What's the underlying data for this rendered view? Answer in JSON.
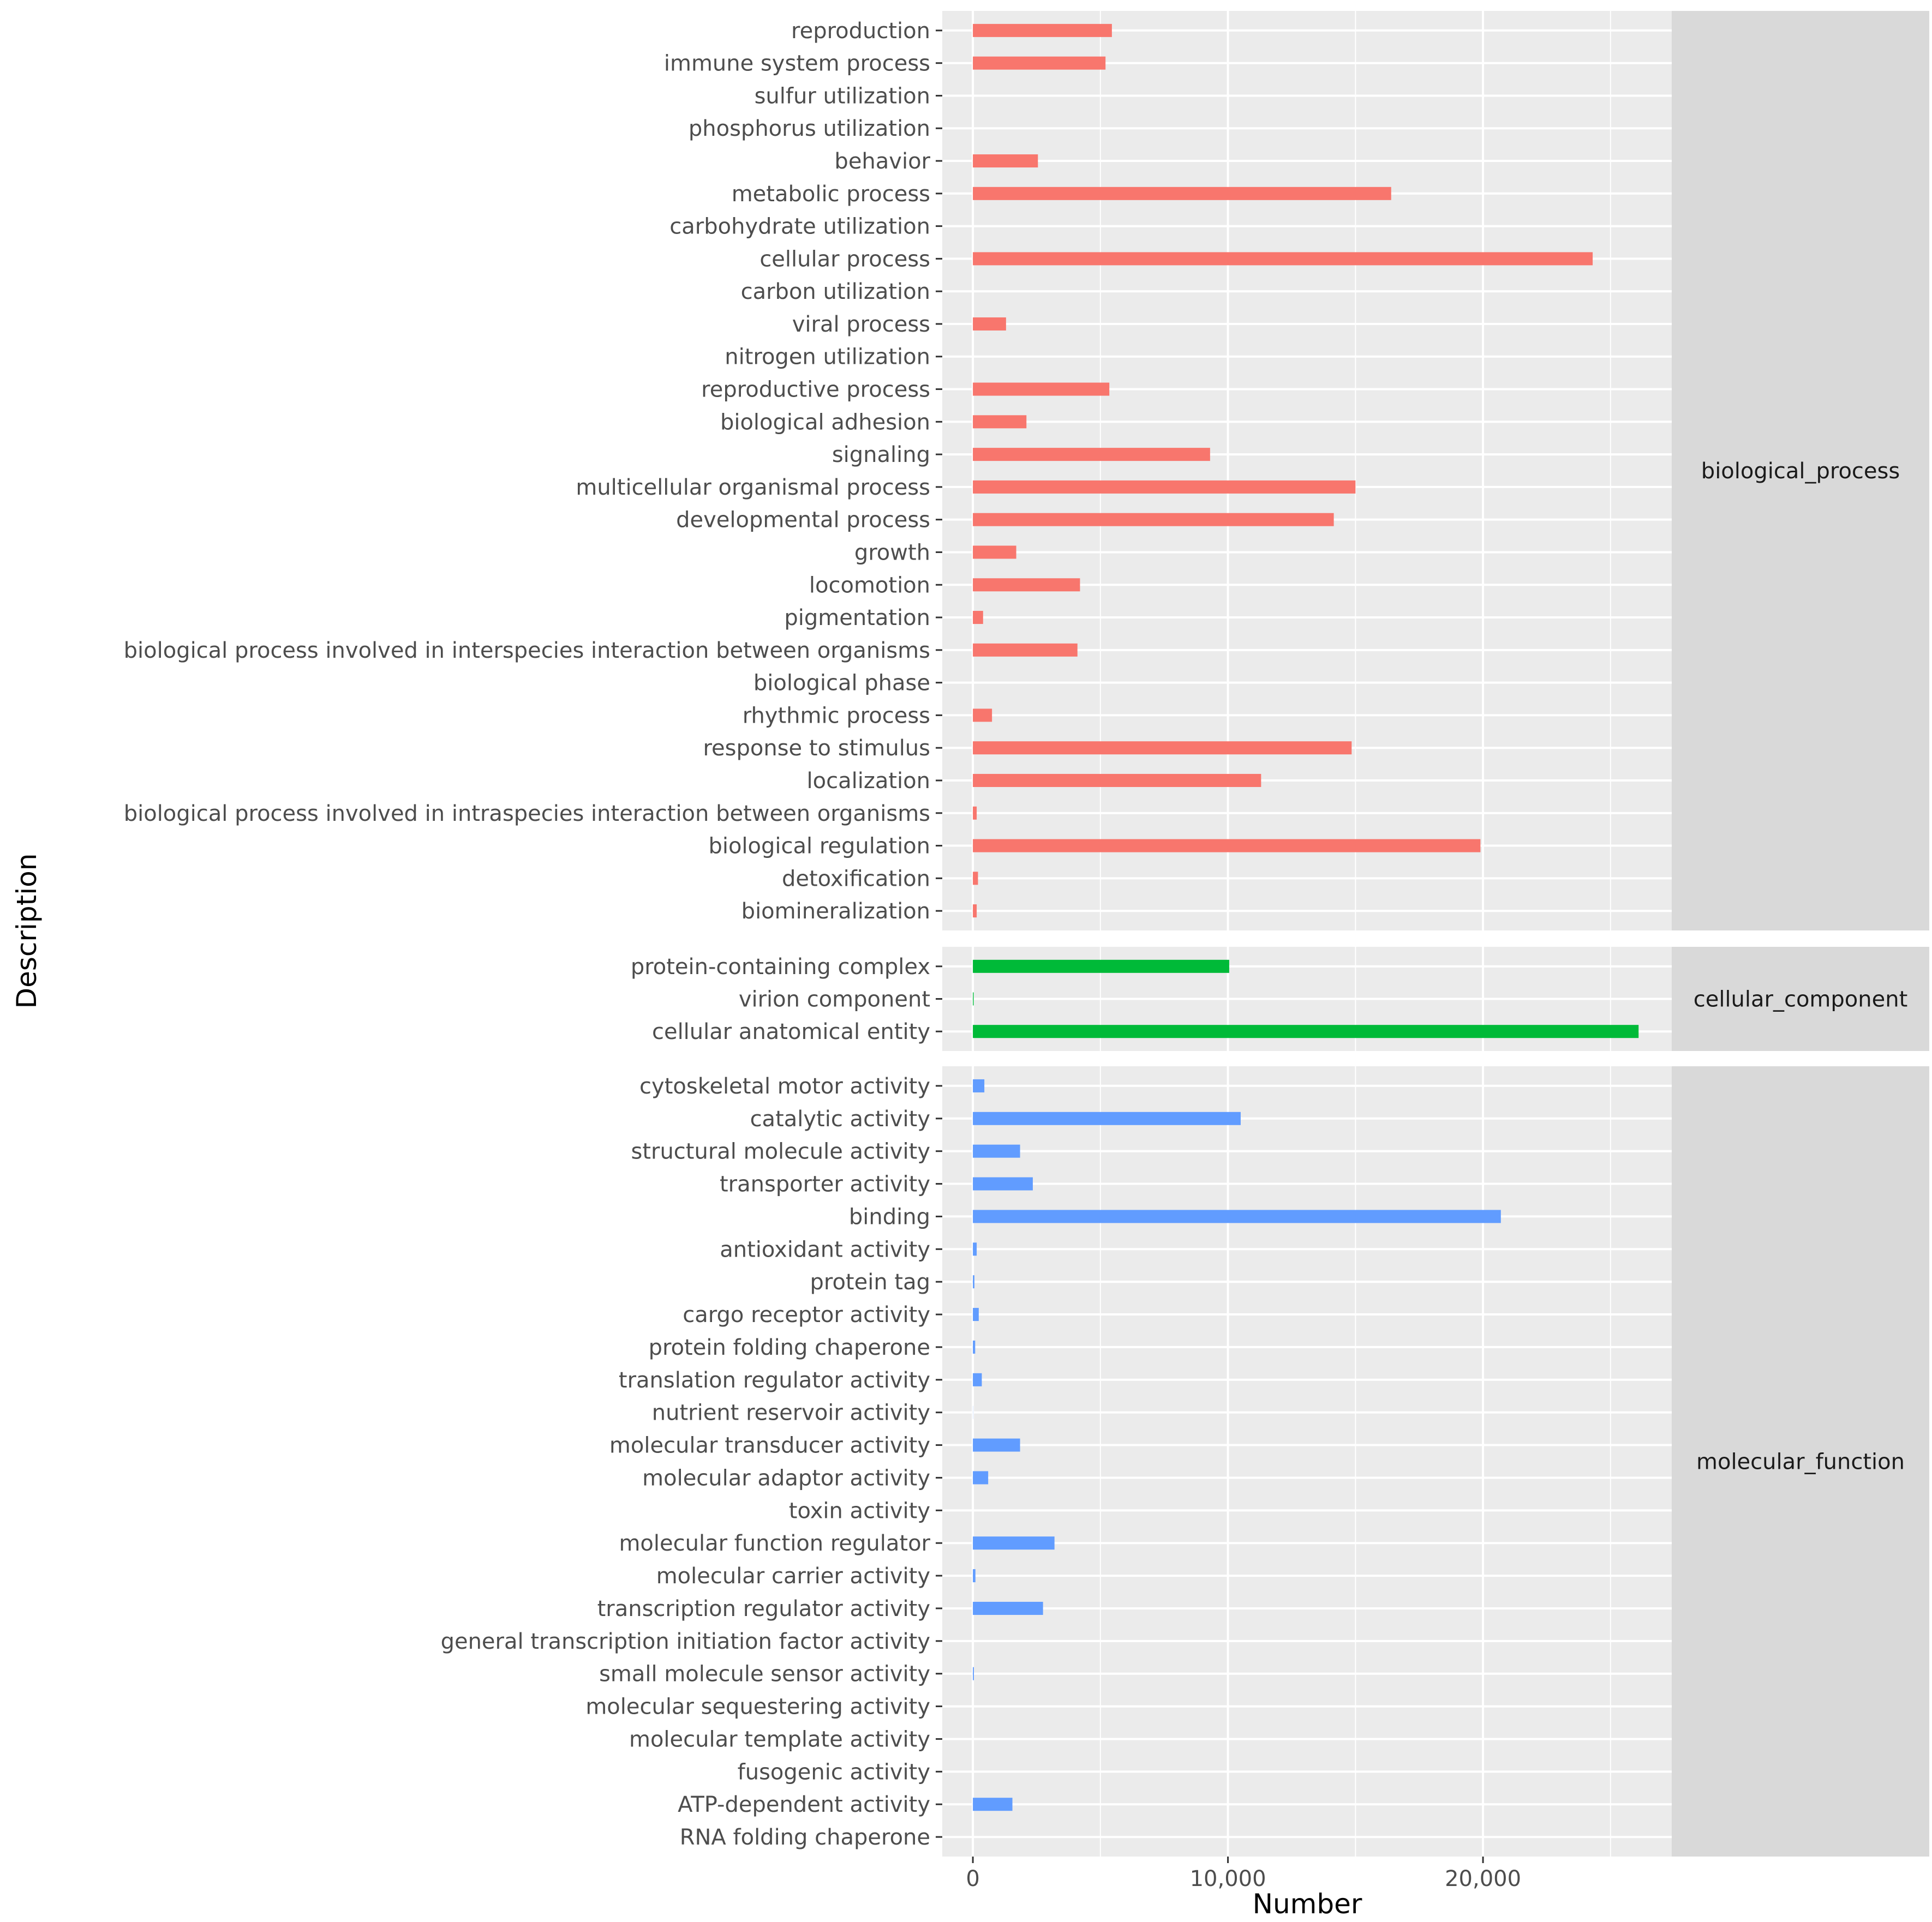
{
  "chart_data": {
    "type": "bar",
    "orientation": "horizontal",
    "xlabel": "Number",
    "ylabel": "Description",
    "xlim": [
      -1200,
      27400
    ],
    "x_ticks": [
      0,
      10000,
      20000
    ],
    "x_tick_labels": [
      "0",
      "10,000",
      "20,000"
    ],
    "grid": true,
    "facets": [
      {
        "name": "biological_process",
        "color": "#f8766d",
        "categories": [
          "reproduction",
          "immune system process",
          "sulfur utilization",
          "phosphorus utilization",
          "behavior",
          "metabolic process",
          "carbohydrate utilization",
          "cellular process",
          "carbon utilization",
          "viral process",
          "nitrogen utilization",
          "reproductive process",
          "biological adhesion",
          "signaling",
          "multicellular organismal process",
          "developmental process",
          "growth",
          "locomotion",
          "pigmentation",
          "biological process involved in interspecies interaction between organisms",
          "biological phase",
          "rhythmic process",
          "response to stimulus",
          "localization",
          "biological process involved in intraspecies interaction between organisms",
          "biological regulation",
          "detoxification",
          "biomineralization"
        ],
        "values": [
          5450,
          5200,
          0,
          0,
          2550,
          16400,
          0,
          24300,
          0,
          1300,
          0,
          5350,
          2100,
          9300,
          15000,
          14150,
          1700,
          4200,
          400,
          4100,
          0,
          750,
          14850,
          11300,
          150,
          19900,
          200,
          150
        ]
      },
      {
        "name": "cellular_component",
        "color": "#00ba38",
        "categories": [
          "protein-containing complex",
          "virion component",
          "cellular anatomical entity"
        ],
        "values": [
          10050,
          30,
          26100
        ]
      },
      {
        "name": "molecular_function",
        "color": "#619cff",
        "categories": [
          "cytoskeletal motor activity",
          "catalytic activity",
          "structural molecule activity",
          "transporter activity",
          "binding",
          "antioxidant activity",
          "protein tag",
          "cargo receptor activity",
          "protein folding chaperone",
          "translation regulator activity",
          "nutrient reservoir activity",
          "molecular transducer activity",
          "molecular adaptor activity",
          "toxin activity",
          "molecular function regulator",
          "molecular carrier activity",
          "transcription regulator activity",
          "general transcription initiation factor activity",
          "small molecule sensor activity",
          "molecular sequestering activity",
          "molecular template activity",
          "fusogenic activity",
          "ATP-dependent activity",
          "RNA folding chaperone"
        ],
        "values": [
          450,
          10500,
          1850,
          2350,
          20700,
          150,
          60,
          230,
          90,
          350,
          5,
          1850,
          600,
          0,
          3200,
          100,
          2750,
          0,
          40,
          0,
          0,
          0,
          1550,
          0
        ]
      }
    ]
  }
}
